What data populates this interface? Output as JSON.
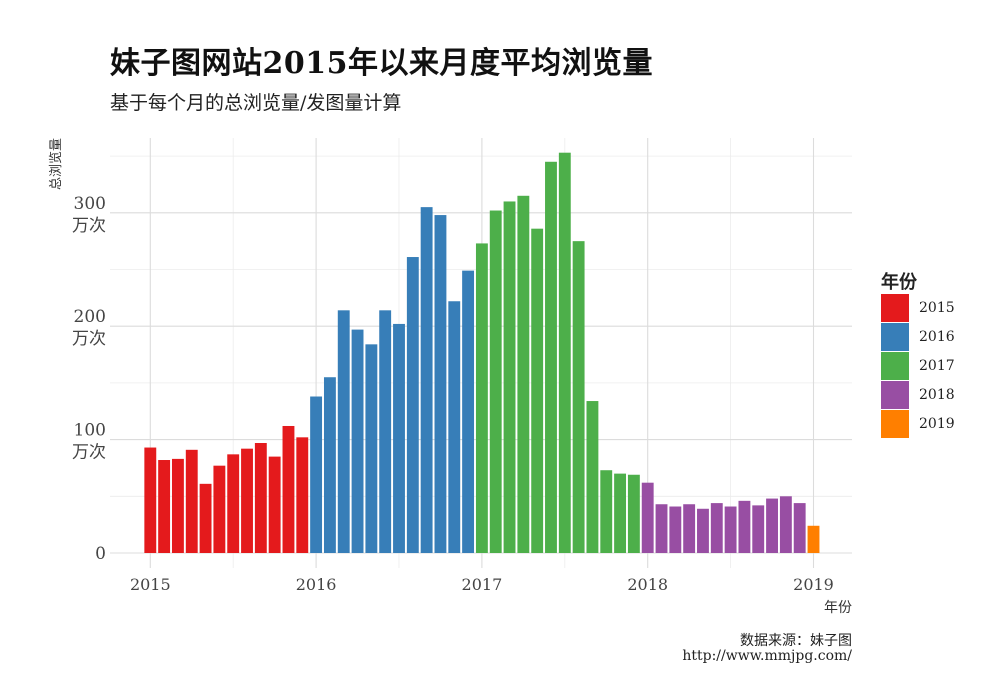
{
  "title": "妹子图网站2015年以来月度平均浏览量",
  "subtitle": "基于每个月的总浏览量/发图量计算",
  "caption": [
    "数据来源：妹子图",
    "http://www.mmjpg.com/"
  ],
  "legend": {
    "title": "年份",
    "items": [
      {
        "label": "2015",
        "color": "#e41a1c"
      },
      {
        "label": "2016",
        "color": "#377eb8"
      },
      {
        "label": "2017",
        "color": "#4daf4a"
      },
      {
        "label": "2018",
        "color": "#984ea3"
      },
      {
        "label": "2019",
        "color": "#ff7f00"
      }
    ]
  },
  "chart_data": {
    "type": "bar",
    "title": "妹子图网站2015年以来月度平均浏览量",
    "subtitle": "基于每个月的总浏览量/发图量计算",
    "ylabel": "总浏览量",
    "xlabel": "年份",
    "ylim": [
      0,
      350
    ],
    "xlim": [
      "2014-10",
      "2019-03"
    ],
    "yticks": [
      {
        "value": 0,
        "lines": [
          "0"
        ]
      },
      {
        "value": 100,
        "lines": [
          "100",
          "万次"
        ]
      },
      {
        "value": 200,
        "lines": [
          "200",
          "万次"
        ]
      },
      {
        "value": 300,
        "lines": [
          "300",
          "万次"
        ]
      }
    ],
    "xticks": [
      "2015",
      "2016",
      "2017",
      "2018",
      "2019"
    ],
    "grid": true,
    "legend_position": "right",
    "series": [
      {
        "name": "2015",
        "color": "#e41a1c",
        "x": [
          "2015-01",
          "2015-02",
          "2015-03",
          "2015-04",
          "2015-05",
          "2015-06",
          "2015-07",
          "2015-08",
          "2015-09",
          "2015-10",
          "2015-11",
          "2015-12"
        ],
        "values": [
          93,
          82,
          83,
          91,
          61,
          77,
          87,
          92,
          97,
          85,
          112,
          102
        ]
      },
      {
        "name": "2016",
        "color": "#377eb8",
        "x": [
          "2016-01",
          "2016-02",
          "2016-03",
          "2016-04",
          "2016-05",
          "2016-06",
          "2016-07",
          "2016-08",
          "2016-09",
          "2016-10",
          "2016-11",
          "2016-12"
        ],
        "values": [
          138,
          155,
          214,
          197,
          184,
          214,
          202,
          261,
          305,
          298,
          222,
          249
        ]
      },
      {
        "name": "2017",
        "color": "#4daf4a",
        "x": [
          "2017-01",
          "2017-02",
          "2017-03",
          "2017-04",
          "2017-05",
          "2017-06",
          "2017-07",
          "2017-08",
          "2017-09",
          "2017-10",
          "2017-11",
          "2017-12"
        ],
        "values": [
          273,
          302,
          310,
          315,
          286,
          345,
          353,
          275,
          134,
          73,
          70,
          69
        ]
      },
      {
        "name": "2018",
        "color": "#984ea3",
        "x": [
          "2018-01",
          "2018-02",
          "2018-03",
          "2018-04",
          "2018-05",
          "2018-06",
          "2018-07",
          "2018-08",
          "2018-09",
          "2018-10",
          "2018-11",
          "2018-12"
        ],
        "values": [
          62,
          43,
          41,
          43,
          39,
          44,
          41,
          46,
          42,
          48,
          50,
          44
        ]
      },
      {
        "name": "2019",
        "color": "#ff7f00",
        "x": [
          "2019-01"
        ],
        "values": [
          24
        ]
      }
    ]
  }
}
